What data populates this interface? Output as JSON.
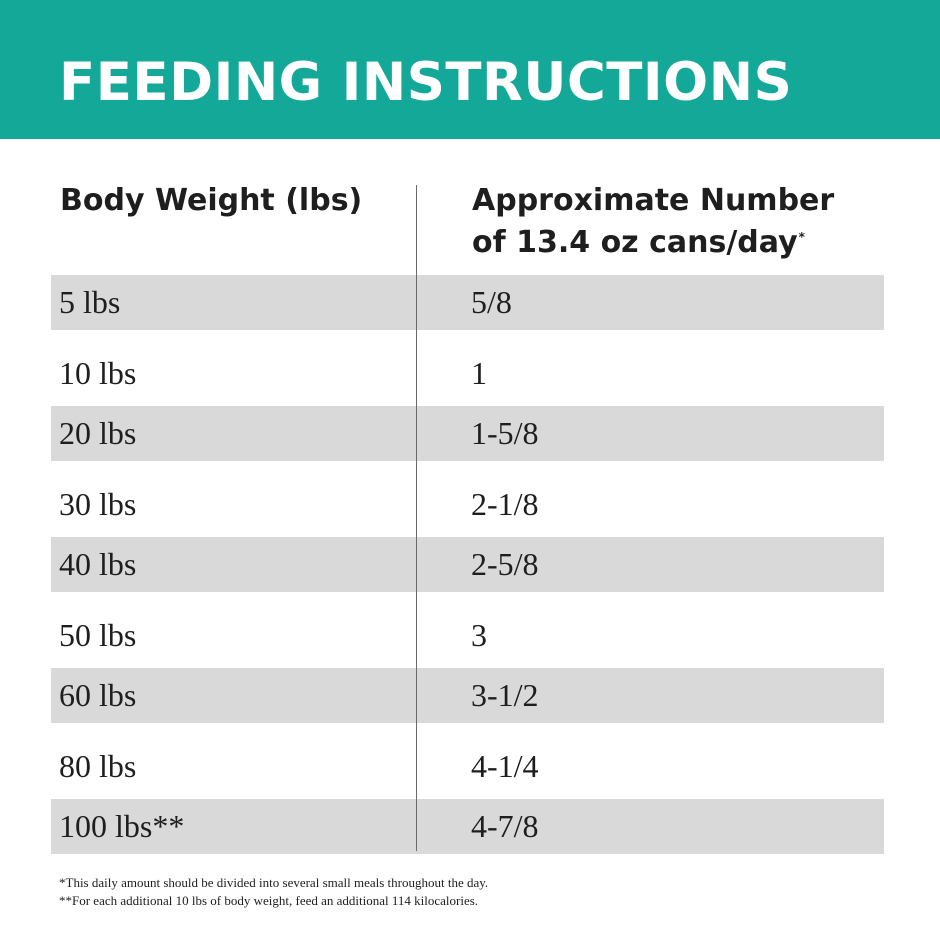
{
  "banner": {
    "title": "FEEDING INSTRUCTIONS",
    "background_color": "#13a898"
  },
  "table": {
    "headers": {
      "body_weight": "Body Weight (lbs)",
      "cans_line1": "Approximate Number",
      "cans_line2": "of 13.4 oz cans/day",
      "cans_marker": "*"
    },
    "rows": [
      {
        "weight": "5 lbs",
        "cans": "5/8"
      },
      {
        "weight": "10 lbs",
        "cans": "1"
      },
      {
        "weight": "20 lbs",
        "cans": "1-5/8"
      },
      {
        "weight": "30 lbs",
        "cans": "2-1/8"
      },
      {
        "weight": "40 lbs",
        "cans": "2-5/8"
      },
      {
        "weight": "50 lbs",
        "cans": "3"
      },
      {
        "weight": "60 lbs",
        "cans": "3-1/2"
      },
      {
        "weight": "80 lbs",
        "cans": "4-1/4"
      },
      {
        "weight": "100 lbs**",
        "cans": "4-7/8"
      }
    ],
    "stripe_color": "#d9d9d9"
  },
  "footnotes": {
    "note1": "*This daily amount should be divided into several small meals throughout the day.",
    "note2": "**For each additional 10 lbs of body weight, feed an additional 114 kilocalories."
  }
}
